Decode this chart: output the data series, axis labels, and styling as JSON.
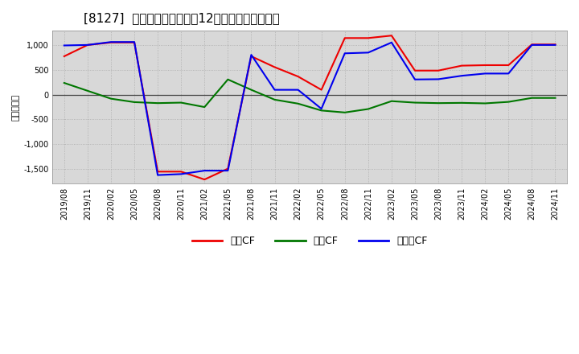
{
  "title": "[8127]  キャッシュフローの12か月移動合計の推移",
  "ylabel": "（百万円）",
  "background_color": "#ffffff",
  "plot_bg_color": "#d8d8d8",
  "x_labels": [
    "2019/08",
    "2019/11",
    "2020/02",
    "2020/05",
    "2020/08",
    "2020/11",
    "2021/02",
    "2021/05",
    "2021/08",
    "2021/11",
    "2022/02",
    "2022/05",
    "2022/08",
    "2022/11",
    "2023/02",
    "2023/05",
    "2023/08",
    "2023/11",
    "2024/02",
    "2024/05",
    "2024/08",
    "2024/11"
  ],
  "eigyo_cf": [
    780,
    1010,
    1060,
    1060,
    -1560,
    -1560,
    -1720,
    -1500,
    780,
    560,
    370,
    100,
    1150,
    1150,
    1200,
    490,
    490,
    590,
    600,
    600,
    1020,
    1020
  ],
  "toshi_cf": [
    240,
    80,
    -80,
    -150,
    -170,
    -160,
    -250,
    310,
    100,
    -100,
    -180,
    -320,
    -360,
    -290,
    -130,
    -160,
    -170,
    -165,
    -175,
    -145,
    -65,
    -65
  ],
  "free_cf": [
    1000,
    1010,
    1070,
    1070,
    -1630,
    -1610,
    -1540,
    -1540,
    810,
    100,
    100,
    -285,
    840,
    855,
    1060,
    310,
    315,
    385,
    430,
    430,
    1010,
    1010
  ],
  "ylim": [
    -1800,
    1300
  ],
  "yticks": [
    -1500,
    -1000,
    -500,
    0,
    500,
    1000
  ],
  "line_colors": {
    "eigyo": "#ee0000",
    "toshi": "#007700",
    "free": "#0000ee"
  },
  "legend_labels": {
    "eigyo": "営業CF",
    "toshi": "投資CF",
    "free": "フリーCF"
  }
}
